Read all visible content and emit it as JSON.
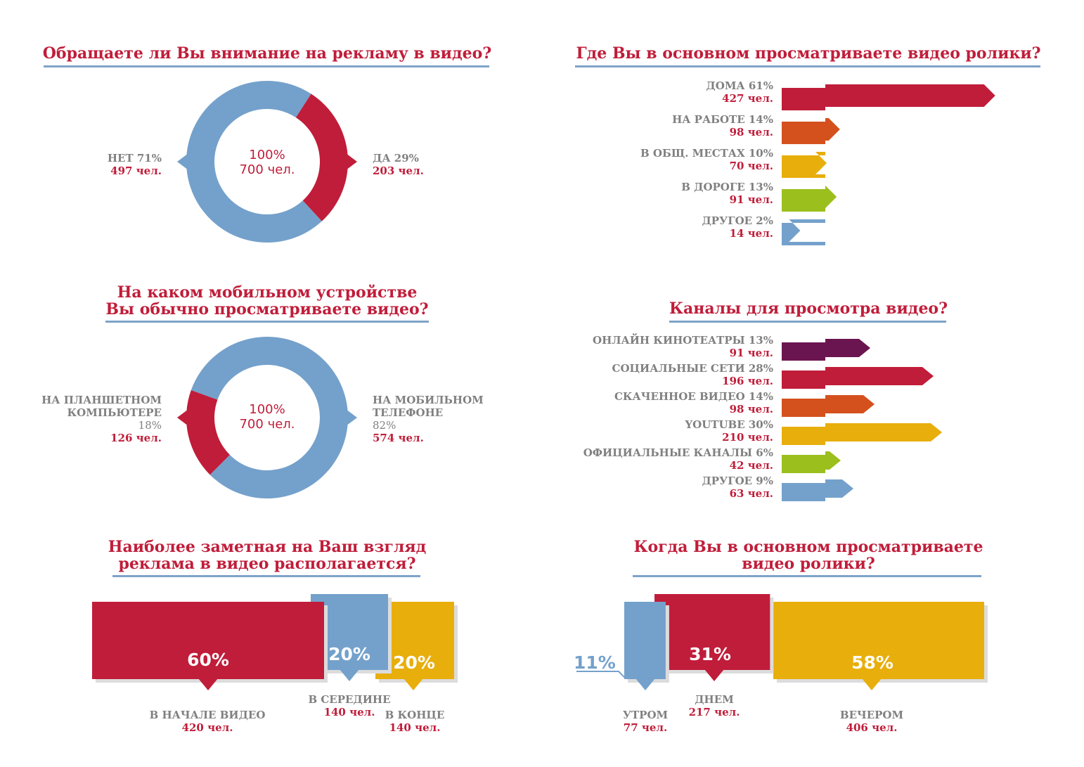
{
  "colors": {
    "red": "#c01d3a",
    "blue": "#74a1cb",
    "orange": "#d4511e",
    "yellow": "#e8ae0c",
    "green": "#9bbf1c",
    "purple": "#6b1550",
    "gray": "#808080",
    "line": "#7ea3c8"
  },
  "chart_data": [
    {
      "type": "pie",
      "title": "Обращаете ли Вы внимание на рекламу в видео?",
      "center": {
        "pct": "100%",
        "count": "700 чел."
      },
      "slices": [
        {
          "label": "ДА 29%",
          "value": 29,
          "count_text": "203 чел.",
          "color": "#c01d3a"
        },
        {
          "label": "НЕТ 71%",
          "value": 71,
          "count_text": "497 чел.",
          "color": "#74a1cb"
        }
      ]
    },
    {
      "type": "bar",
      "title": "Где Вы в основном просматриваете видео ролики?",
      "items": [
        {
          "label": "ДОМА 61%",
          "value": 61,
          "count_text": "427 чел.",
          "color": "#c01d3a"
        },
        {
          "label": "НА РАБОТЕ 14%",
          "value": 14,
          "count_text": "98 чел.",
          "color": "#d4511e"
        },
        {
          "label": "В ОБЩ. МЕСТАХ 10%",
          "value": 10,
          "count_text": "70 чел.",
          "color": "#e8ae0c"
        },
        {
          "label": "В ДОРОГЕ 13%",
          "value": 13,
          "count_text": "91 чел.",
          "color": "#9bbf1c"
        },
        {
          "label": "ДРУГОЕ 2%",
          "value": 2,
          "count_text": "14 чел.",
          "color": "#74a1cb"
        }
      ]
    },
    {
      "type": "pie",
      "title_line1": "На каком мобильном устройстве",
      "title_line2": "Вы обычно просматриваете видео?",
      "center": {
        "pct": "100%",
        "count": "700 чел."
      },
      "slices": [
        {
          "label_line1": "НА ПЛАНШЕТНОМ",
          "label_line2": "КОМПЬЮТЕРЕ",
          "pct_text": "18%",
          "value": 18,
          "count_text": "126 чел.",
          "color": "#c01d3a"
        },
        {
          "label_line1": "НА МОБИЛЬНОМ",
          "label_line2": "ТЕЛЕФОНЕ",
          "pct_text": "82%",
          "value": 82,
          "count_text": "574 чел.",
          "color": "#74a1cb"
        }
      ]
    },
    {
      "type": "bar",
      "title": "Каналы для просмотра видео?",
      "items": [
        {
          "label": "ОНЛАЙН КИНОТЕАТРЫ 13%",
          "value": 13,
          "count_text": "91 чел.",
          "color": "#6b1550"
        },
        {
          "label": "СОЦИАЛЬНЫЕ СЕТИ 28%",
          "value": 28,
          "count_text": "196 чел.",
          "color": "#c01d3a"
        },
        {
          "label": "СКАЧЕННОЕ ВИДЕО 14%",
          "value": 14,
          "count_text": "98 чел.",
          "color": "#d4511e"
        },
        {
          "label": "YOUTUBE 30%",
          "value": 30,
          "count_text": "210 чел.",
          "color": "#e8ae0c"
        },
        {
          "label": "ОФИЦИАЛЬНЫЕ КАНАЛЫ 6%",
          "value": 6,
          "count_text": "42 чел.",
          "color": "#9bbf1c"
        },
        {
          "label": "ДРУГОЕ 9%",
          "value": 9,
          "count_text": "63 чел.",
          "color": "#74a1cb"
        }
      ]
    },
    {
      "type": "bar",
      "title_line1": "Наиболее заметная на Ваш взгляд",
      "title_line2": "реклама в видео располагается?",
      "items": [
        {
          "pct_text": "60%",
          "value": 60,
          "label": "В НАЧАЛЕ ВИДЕО",
          "count_text": "420 чел.",
          "color": "#c01d3a"
        },
        {
          "pct_text": "20%",
          "value": 20,
          "label": "В СЕРЕДИНЕ",
          "count_text": "140 чел.",
          "color": "#74a1cb"
        },
        {
          "pct_text": "20%",
          "value": 20,
          "label": "В КОНЦЕ",
          "count_text": "140 чел.",
          "color": "#e8ae0c"
        }
      ]
    },
    {
      "type": "bar",
      "title_line1": "Когда Вы в основном просматриваете",
      "title_line2": "видео ролики?",
      "items": [
        {
          "pct_text": "11%",
          "value": 11,
          "label": "УТРОМ",
          "count_text": "77 чел.",
          "color": "#74a1cb"
        },
        {
          "pct_text": "31%",
          "value": 31,
          "label": "ДНЕМ",
          "count_text": "217 чел.",
          "color": "#c01d3a"
        },
        {
          "pct_text": "58%",
          "value": 58,
          "label": "ВЕЧЕРОМ",
          "count_text": "406 чел.",
          "color": "#e8ae0c"
        }
      ]
    }
  ]
}
